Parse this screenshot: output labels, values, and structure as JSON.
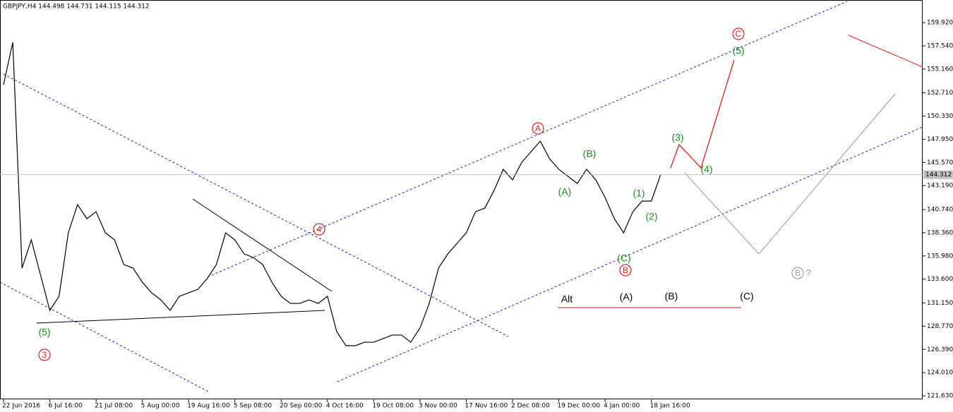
{
  "chart_data": {
    "type": "line",
    "title": "GBPJPY,H4  144.498 144.731 144.115 144.312",
    "categories": [
      "22 Jun 2016",
      null,
      null,
      null,
      null,
      "6 Jul 16:00",
      null,
      null,
      null,
      null,
      "21 Jul 08:00",
      null,
      null,
      null,
      null,
      "5 Aug 00:00",
      null,
      null,
      null,
      null,
      "19 Aug 16:00",
      null,
      null,
      null,
      null,
      "5 Sep 08:00",
      null,
      null,
      null,
      null,
      "20 Sep 00:00",
      null,
      null,
      null,
      null,
      "4 Oct 16:00",
      null,
      null,
      null,
      null,
      "19 Oct 08:00",
      null,
      null,
      null,
      null,
      "3 Nov 00:00",
      null,
      null,
      null,
      null,
      "17 Nov 16:00",
      null,
      null,
      null,
      null,
      "2 Dec 08:00",
      null,
      null,
      null,
      null,
      "19 Dec 00:00",
      null,
      null,
      null,
      null,
      "4 Jan 00:00",
      null,
      null,
      null,
      null,
      "18 Jan 16:00",
      null
    ],
    "series": [
      {
        "name": "GBPJPY",
        "color": "#000000",
        "values": [
          153.55,
          157.89,
          134.73,
          137.63,
          134.01,
          130.39,
          131.84,
          138.35,
          141.25,
          139.8,
          140.52,
          138.35,
          137.63,
          135.09,
          134.73,
          133.28,
          132.2,
          131.47,
          130.39,
          131.84,
          132.2,
          132.56,
          133.65,
          135.09,
          138.35,
          137.63,
          136.18,
          135.82,
          135.09,
          133.28,
          131.84,
          131.11,
          131.11,
          131.47,
          131.11,
          131.84,
          128.22,
          126.77,
          126.77,
          127.13,
          127.13,
          127.49,
          127.86,
          127.86,
          127.13,
          128.58,
          131.11,
          134.73,
          136.18,
          137.27,
          138.35,
          140.52,
          140.88,
          142.69,
          144.87,
          143.78,
          145.59,
          146.68,
          147.76,
          145.95,
          144.87,
          144.14,
          143.42,
          144.87,
          143.78,
          141.97,
          139.8,
          138.35,
          140.52,
          141.61,
          141.61,
          144.31
        ]
      }
    ],
    "current_price": 144.312,
    "ylim": [
      121.27,
      162.24
    ],
    "yticks": [
      {
        "value": 121.63,
        "label": "121.630"
      },
      {
        "value": 124.01,
        "label": "124.010"
      },
      {
        "value": 126.39,
        "label": "126.390"
      },
      {
        "value": 128.77,
        "label": "128.770"
      },
      {
        "value": 131.15,
        "label": "131.150"
      },
      {
        "value": 133.6,
        "label": "133.600"
      },
      {
        "value": 135.98,
        "label": "135.980"
      },
      {
        "value": 138.36,
        "label": "138.360"
      },
      {
        "value": 140.74,
        "label": "140.740"
      },
      {
        "value": 143.19,
        "label": "143.190"
      },
      {
        "value": 145.57,
        "label": "145.570"
      },
      {
        "value": 147.95,
        "label": "147.950"
      },
      {
        "value": 150.33,
        "label": "150.330"
      },
      {
        "value": 152.71,
        "label": "152.710"
      },
      {
        "value": 155.16,
        "label": "155.160"
      },
      {
        "value": 157.54,
        "label": "157.540"
      },
      {
        "value": 159.92,
        "label": "159.920"
      }
    ],
    "annotations": [
      {
        "text": "(5)",
        "color": "#1a8a1a"
      },
      {
        "text": "3",
        "color": "#e0201c",
        "circled": true
      },
      {
        "text": "4",
        "color": "#e0201c",
        "circled": true
      },
      {
        "text": "A",
        "color": "#e0201c",
        "circled": true
      },
      {
        "text": "(B)",
        "color": "#1a8a1a"
      },
      {
        "text": "(A)",
        "color": "#1a8a1a"
      },
      {
        "text": "(1)",
        "color": "#1a8a1a"
      },
      {
        "text": "(2)",
        "color": "#1a8a1a"
      },
      {
        "text": "(C)",
        "color": "#1a8a1a"
      },
      {
        "text": "B",
        "color": "#e0201c",
        "circled": true
      },
      {
        "text": "(3)",
        "color": "#1a8a1a"
      },
      {
        "text": "(4)",
        "color": "#1a8a1a"
      },
      {
        "text": "(5)",
        "color": "#1a8a1a"
      },
      {
        "text": "C",
        "color": "#e0201c",
        "circled": true
      },
      {
        "text": "B",
        "color": "#a0a0a0",
        "circled": true
      },
      {
        "text": "?",
        "color": "#a0a0a0"
      },
      {
        "text": "Alt",
        "color": "#000000"
      },
      {
        "text": "(A)",
        "color": "#000000"
      },
      {
        "text": "(B)",
        "color": "#000000"
      },
      {
        "text": "(C)",
        "color": "#000000"
      }
    ]
  }
}
